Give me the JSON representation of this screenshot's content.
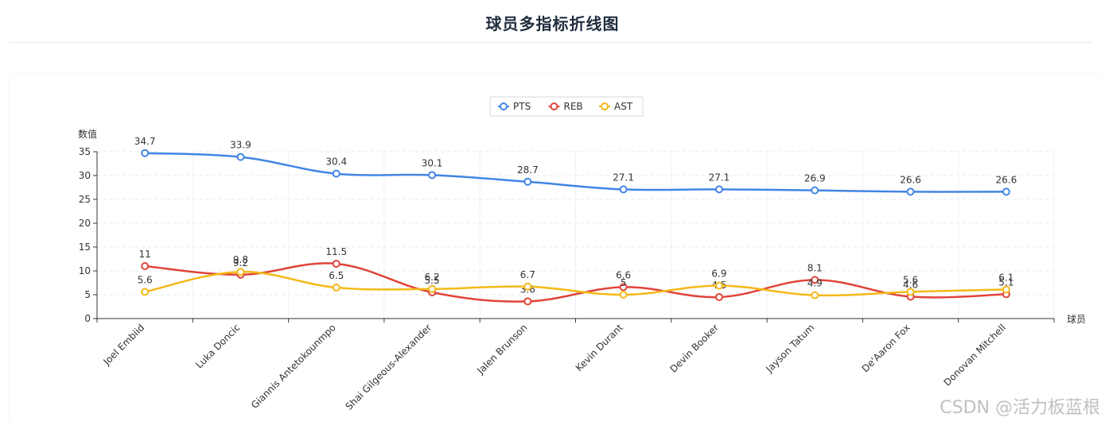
{
  "page": {
    "title": "球员多指标折线图",
    "watermark": "CSDN @活力板蓝根"
  },
  "colors": {
    "PTS": "#4285e4",
    "REB": "#e0443a",
    "AST": "#f4b918"
  },
  "chart_data": {
    "type": "line",
    "smooth": true,
    "categories": [
      "Joel Embiid",
      "Luka Doncic",
      "Giannis Antetokounmpo",
      "Shai Gilgeous-Alexander",
      "Jalen Brunson",
      "Kevin Durant",
      "Devin Booker",
      "Jayson Tatum",
      "De'Aaron Fox",
      "Donovan Mitchell"
    ],
    "series": [
      {
        "name": "PTS",
        "values": [
          34.7,
          33.9,
          30.4,
          30.1,
          28.7,
          27.1,
          27.1,
          26.9,
          26.6,
          26.6
        ]
      },
      {
        "name": "REB",
        "values": [
          11,
          9.2,
          11.5,
          5.5,
          3.6,
          6.6,
          4.5,
          8.1,
          4.6,
          5.1
        ]
      },
      {
        "name": "AST",
        "values": [
          5.6,
          9.8,
          6.5,
          6.2,
          6.7,
          5,
          6.9,
          4.9,
          5.6,
          6.1
        ]
      }
    ],
    "xlabel": "球员",
    "ylabel": "数值",
    "ylim": [
      0,
      35
    ],
    "yticks": [
      0,
      5,
      10,
      15,
      20,
      25,
      30,
      35
    ],
    "grid": true,
    "legend_position": "top-center",
    "data_labels": true
  }
}
